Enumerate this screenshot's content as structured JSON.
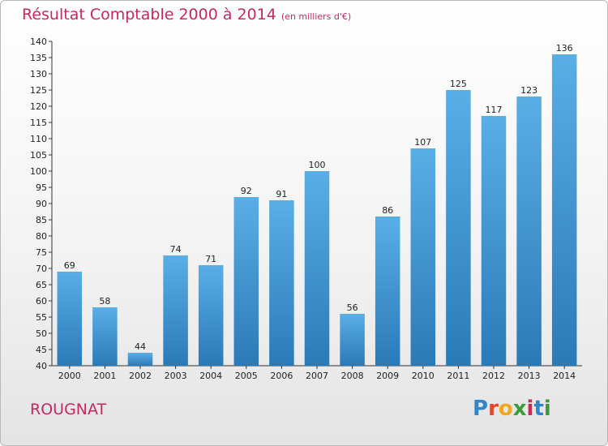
{
  "title": "Résultat Comptable 2000 à 2014",
  "subtitle": "(en milliers d'€)",
  "commune": "ROUGNAT",
  "logo": {
    "letters": [
      "P",
      "r",
      "o",
      "x",
      "i",
      "t",
      "i"
    ],
    "colors": [
      "#2f86c9",
      "#e0472b",
      "#f3a61b",
      "#3a9b3a",
      "#c7295a",
      "#2f86c9",
      "#3a9b3a"
    ]
  },
  "colors": {
    "bar_top": "#5aaee6",
    "bar_bottom": "#2a7ab8",
    "title": "#c7295a"
  },
  "chart_data": {
    "type": "bar",
    "title": "Résultat Comptable 2000 à 2014",
    "subtitle": "(en milliers d'€)",
    "xlabel": "",
    "ylabel": "",
    "ylim": [
      40,
      140
    ],
    "ytick_step": 5,
    "grid": false,
    "categories": [
      "2000",
      "2001",
      "2002",
      "2003",
      "2004",
      "2005",
      "2006",
      "2007",
      "2008",
      "2009",
      "2010",
      "2011",
      "2012",
      "2013",
      "2014"
    ],
    "values": [
      69,
      58,
      44,
      74,
      71,
      92,
      91,
      100,
      56,
      86,
      107,
      125,
      117,
      123,
      136
    ]
  }
}
